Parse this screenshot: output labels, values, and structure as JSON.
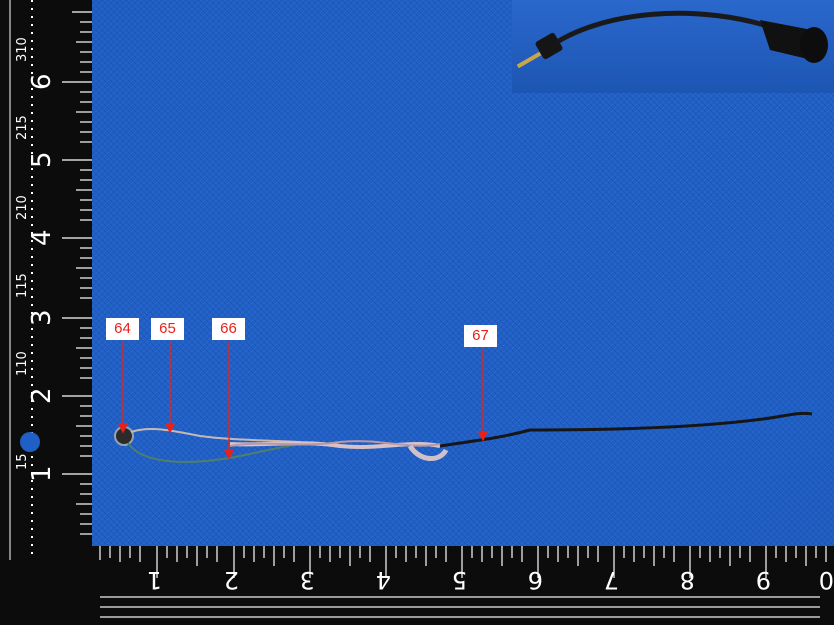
{
  "callouts": [
    {
      "id": "64",
      "label": "64"
    },
    {
      "id": "65",
      "label": "65"
    },
    {
      "id": "66",
      "label": "66"
    },
    {
      "id": "67",
      "label": "67"
    }
  ],
  "ruler_left": {
    "inch_labels": [
      "1",
      "2",
      "3",
      "4",
      "5",
      "6"
    ],
    "edge_labels": [
      "310",
      "215",
      "210",
      "115",
      "110",
      "15"
    ]
  },
  "ruler_bottom": {
    "inch_labels": [
      "1",
      "2",
      "3",
      "4",
      "5",
      "6",
      "7",
      "8",
      "9",
      "0"
    ]
  },
  "colors": {
    "mat": "#1f5fc6",
    "ruler": "#0c0c0c",
    "callout_text": "#e8211b",
    "callout_arrow": "#e8211b"
  },
  "icons": [
    "headset-cable-photo"
  ]
}
